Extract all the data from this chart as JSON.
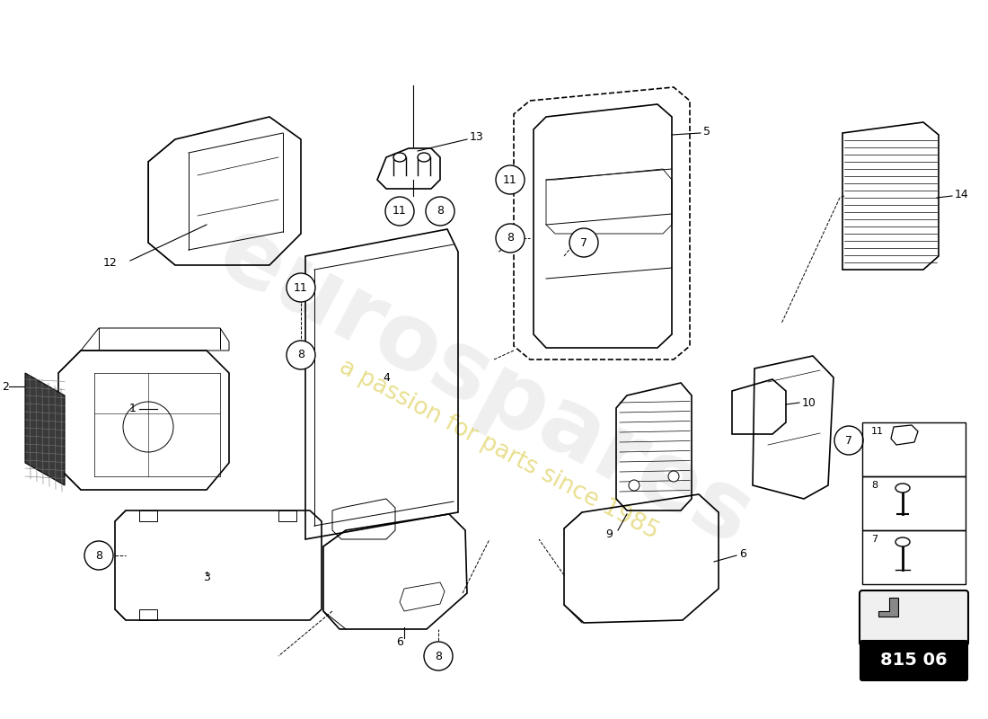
{
  "bg_color": "#ffffff",
  "line_color": "#000000",
  "watermark_main": "eurospares",
  "watermark_sub": "a passion for parts since 1985",
  "badge_num": "815 06"
}
